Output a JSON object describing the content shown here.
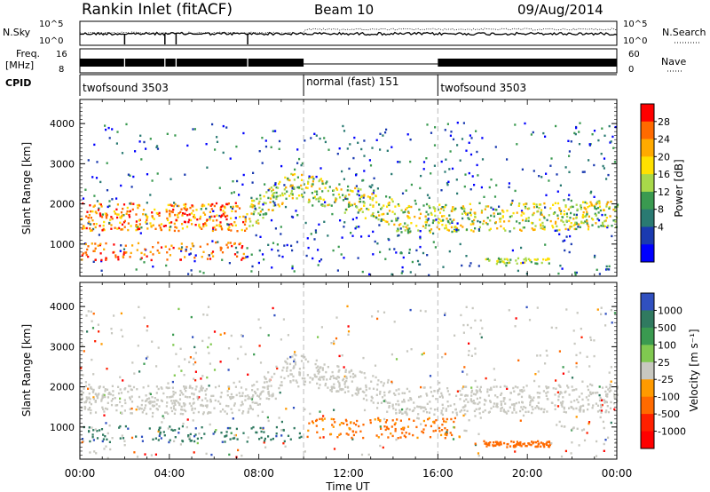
{
  "header": {
    "station": "Rankin Inlet (fitACF)",
    "beam": "Beam 10",
    "date": "09/Aug/2014"
  },
  "noise_panel": {
    "left_label": "N.Sky",
    "left_ticks": [
      "10^5",
      "10^0"
    ],
    "right_label": "N.Search",
    "right_ticks": [
      "10^5",
      "10^0"
    ]
  },
  "freq_panel": {
    "left_label_1": "Freq.",
    "left_label_2": "[MHz]",
    "left_ticks": [
      "16",
      "8"
    ],
    "right_label": "Nave",
    "right_ticks": [
      "60",
      "0"
    ]
  },
  "cpid": {
    "label": "CPID",
    "segments": [
      {
        "label": "twofsound 3503",
        "start_h": 0,
        "end_h": 10
      },
      {
        "label": "normal (fast) 151",
        "start_h": 10,
        "end_h": 16
      },
      {
        "label": "twofsound 3503",
        "start_h": 16,
        "end_h": 24
      }
    ]
  },
  "chart_data": [
    {
      "type": "heatmap",
      "name": "Power",
      "ylabel": "Slant Range [km]",
      "ylim": [
        200,
        4600
      ],
      "yticks": [
        "1000",
        "2000",
        "3000",
        "4000"
      ],
      "xlabel": "Time UT",
      "xlim_hours": [
        0,
        24
      ],
      "xticks": [
        "00:00",
        "04:00",
        "08:00",
        "12:00",
        "16:00",
        "20:00",
        "00:00"
      ],
      "colorbar": {
        "label": "Power [dB]",
        "ticks": [
          "28",
          "24",
          "20",
          "16",
          "12",
          "8",
          "4"
        ],
        "colors": [
          "#ff0000",
          "#ff6a00",
          "#ffaa00",
          "#ffe000",
          "#a8d84a",
          "#3a9a50",
          "#2a7a72",
          "#1a3ab0",
          "#0000ff"
        ]
      }
    },
    {
      "type": "heatmap",
      "name": "Velocity",
      "ylabel": "Slant Range [km]",
      "ylim": [
        200,
        4600
      ],
      "yticks": [
        "1000",
        "2000",
        "3000",
        "4000"
      ],
      "xlabel": "Time UT",
      "xlim_hours": [
        0,
        24
      ],
      "xticks": [
        "00:00",
        "04:00",
        "08:00",
        "12:00",
        "16:00",
        "20:00",
        "00:00"
      ],
      "colorbar": {
        "label": "Velocity [m s⁻¹]",
        "ticks": [
          "1000",
          "500",
          "100",
          "25",
          "-25",
          "-100",
          "-500",
          "-1000"
        ],
        "colors": [
          "#3050c0",
          "#307a60",
          "#3a9a50",
          "#80c850",
          "#c8c8c0",
          "#ff9a00",
          "#ff6a00",
          "#ff2000",
          "#ff0000"
        ]
      }
    }
  ]
}
